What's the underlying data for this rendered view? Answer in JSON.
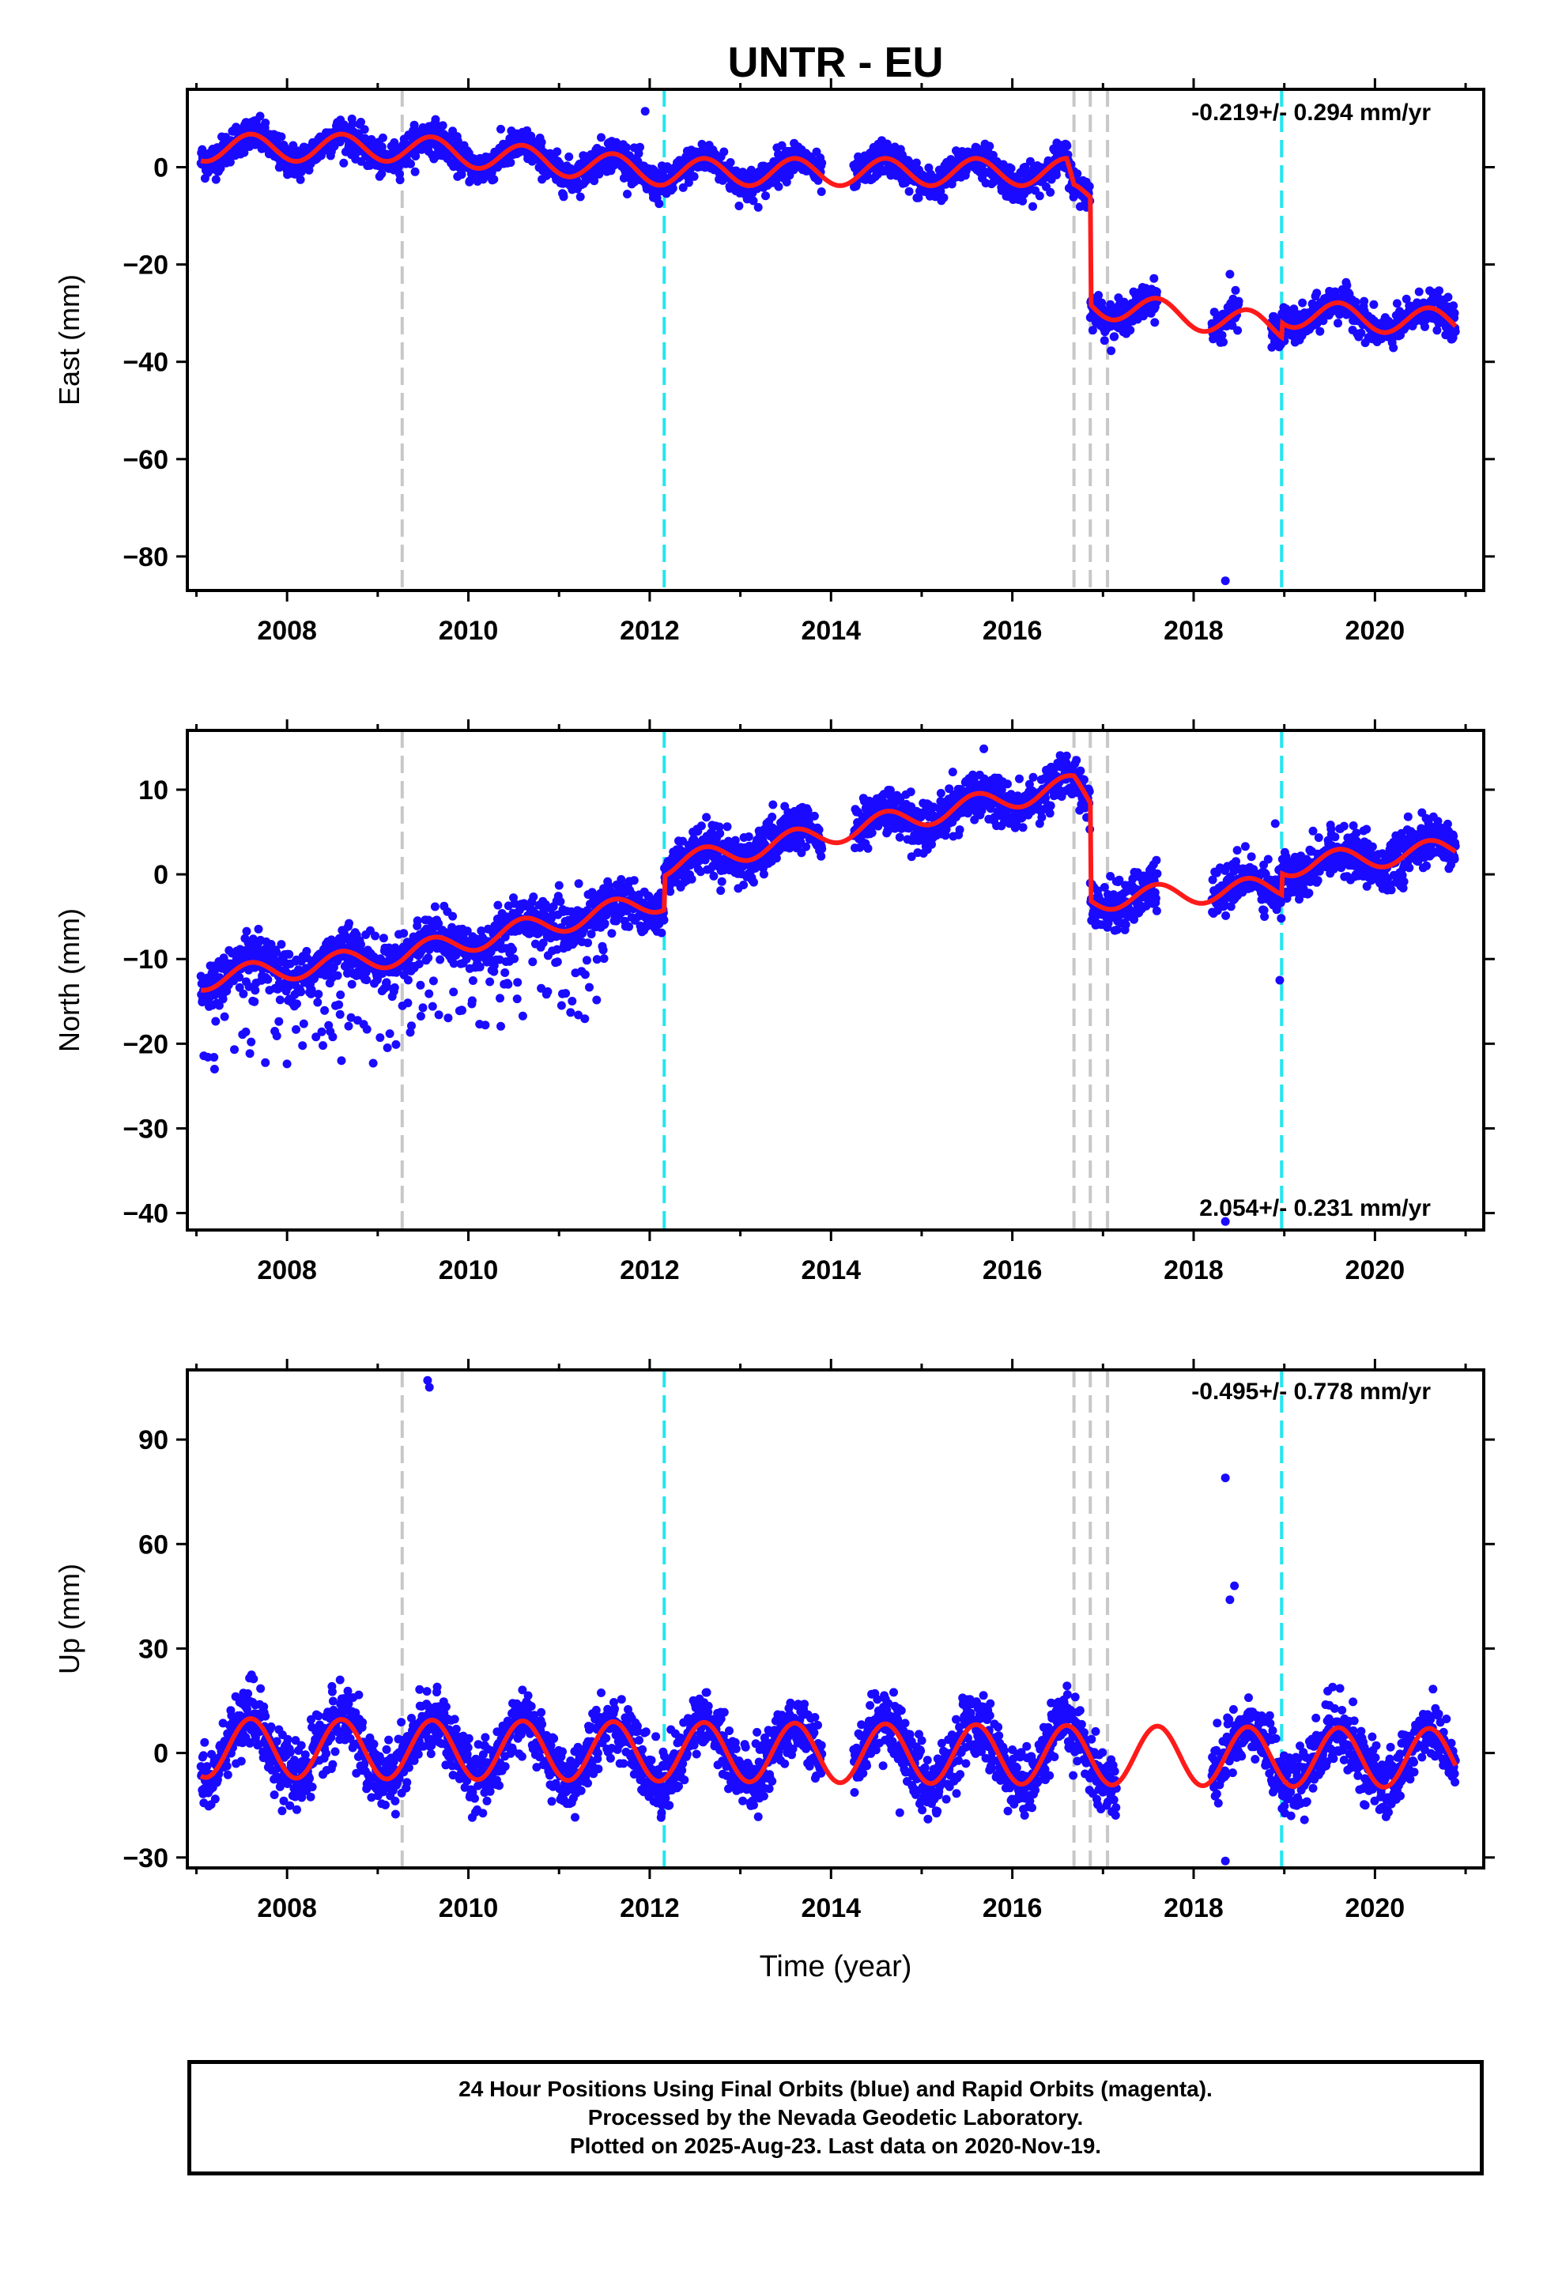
{
  "title": "UNTR - EU",
  "colors": {
    "points": "#1a0aff",
    "model": "#ff1a1a",
    "offset_gray": "#c8c8c8",
    "offset_cyan": "#22e6ee",
    "frame": "#000000"
  },
  "x_tick_labels": [
    "2008",
    "2010",
    "2012",
    "2014",
    "2016",
    "2018",
    "2020"
  ],
  "x_axis_label": "Time (year)",
  "offset_lines": {
    "gray": [
      2009.27,
      2016.68,
      2016.86,
      2017.05
    ],
    "cyan": [
      2012.16,
      2018.97
    ]
  },
  "caption": {
    "line1": "24 Hour Positions Using Final Orbits (blue) and Rapid Orbits (magenta).",
    "line2": "Processed by the Nevada Geodetic Laboratory.",
    "line3": "Plotted on 2025-Aug-23. Last data on 2020-Nov-19."
  },
  "chart_data": [
    {
      "type": "scatter",
      "component": "east",
      "ylabel": "East (mm)",
      "rate_text": "-0.219+/- 0.294 mm/yr",
      "xlim": [
        2006.9,
        2021.2
      ],
      "ylim": [
        -87,
        16
      ],
      "yticks": [
        0,
        -20,
        -40,
        -60,
        -80
      ],
      "ytick_labels": [
        "0",
        "−20",
        "−40",
        "−60",
        "−80"
      ],
      "model_knots": [
        [
          2007.0,
          4
        ],
        [
          2009.27,
          4
        ],
        [
          2012.16,
          -1
        ],
        [
          2016.6,
          -1
        ],
        [
          2016.68,
          -6
        ],
        [
          2016.86,
          -6
        ],
        [
          2016.86,
          -28
        ],
        [
          2018.97,
          -33
        ],
        [
          2018.97,
          -30
        ],
        [
          2020.89,
          -32
        ]
      ],
      "seasonal_amp": 2.8,
      "scatter_sd": 1.7,
      "outliers": [
        [
          2011.95,
          11.5
        ],
        [
          2018.35,
          -85
        ],
        [
          2018.4,
          -22
        ]
      ],
      "gaps": [
        [
          2013.9,
          2014.25
        ],
        [
          2017.6,
          2018.2
        ],
        [
          2018.5,
          2018.85
        ]
      ]
    },
    {
      "type": "scatter",
      "component": "north",
      "ylabel": "North (mm)",
      "rate_text": "2.054+/- 0.231 mm/yr",
      "xlim": [
        2006.9,
        2021.2
      ],
      "ylim": [
        -42,
        17
      ],
      "yticks": [
        10,
        0,
        -10,
        -20,
        -30,
        -40
      ],
      "ytick_labels": [
        "10",
        "0",
        "−10",
        "−20",
        "−30",
        "−40"
      ],
      "model_knots": [
        [
          2007.0,
          -12.5
        ],
        [
          2009.27,
          -9.5
        ],
        [
          2012.16,
          -3
        ],
        [
          2012.16,
          1
        ],
        [
          2016.68,
          10.5
        ],
        [
          2016.86,
          8.5
        ],
        [
          2016.86,
          -3
        ],
        [
          2018.97,
          -1.5
        ],
        [
          2018.97,
          1
        ],
        [
          2020.89,
          3
        ]
      ],
      "seasonal_amp": 1.3,
      "scatter_sd": 1.4,
      "outliers": [
        [
          2018.35,
          -41
        ],
        [
          2018.95,
          -12.5
        ],
        [
          2018.9,
          6
        ],
        [
          2007.2,
          -23
        ],
        [
          2008.6,
          -22
        ],
        [
          2008.95,
          -22.3
        ]
      ],
      "gaps": [
        [
          2013.9,
          2014.25
        ],
        [
          2017.6,
          2018.2
        ]
      ]
    },
    {
      "type": "scatter",
      "component": "up",
      "ylabel": "Up (mm)",
      "rate_text": "-0.495+/- 0.778 mm/yr",
      "xlim": [
        2006.9,
        2021.2
      ],
      "ylim": [
        -33,
        110
      ],
      "yticks": [
        90,
        60,
        30,
        0,
        -30
      ],
      "ytick_labels": [
        "90",
        "60",
        "30",
        "0",
        "−30"
      ],
      "model_knots": [
        [
          2007.0,
          1.5
        ],
        [
          2020.89,
          -1.5
        ]
      ],
      "seasonal_amp": 8.5,
      "scatter_sd": 4.5,
      "outliers": [
        [
          2009.55,
          107
        ],
        [
          2009.57,
          105
        ],
        [
          2018.35,
          79
        ],
        [
          2018.45,
          48
        ],
        [
          2018.4,
          44
        ],
        [
          2018.35,
          -31
        ]
      ],
      "gaps": [
        [
          2013.9,
          2014.25
        ],
        [
          2017.15,
          2018.2
        ]
      ]
    }
  ]
}
